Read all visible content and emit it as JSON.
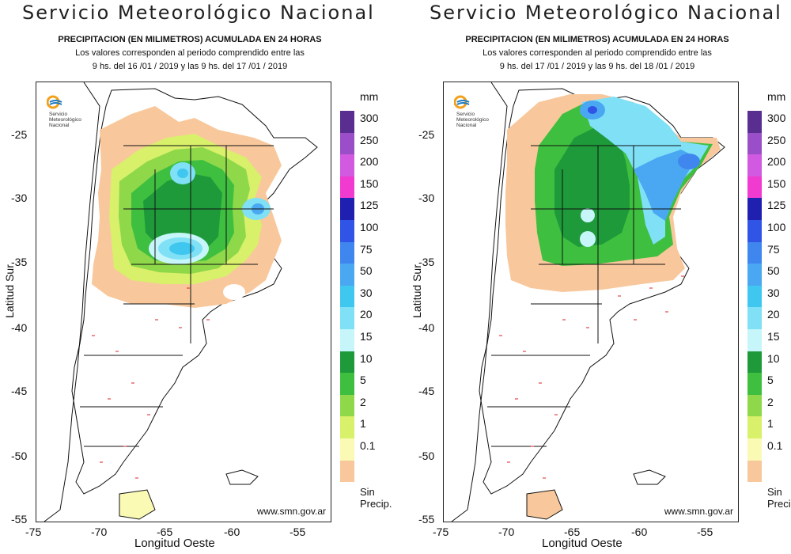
{
  "panels": [
    {
      "title": "Servicio  Meteorológico  Nacional",
      "subtitle1": "PRECIPITACION (EN MILIMETROS) ACUMULADA EN 24 HORAS",
      "subtitle2": "Los valores corresponden al periodo comprendido entre las",
      "subtitle3": "9 hs. del 16 /01 / 2019  y las 9 hs. del 17 /01 / 2019",
      "url": "www.smn.gov.ar"
    },
    {
      "title": "Servicio  Meteorológico  Nacional",
      "subtitle1": "PRECIPITACION (EN MILIMETROS) ACUMULADA EN 24 HORAS",
      "subtitle2": "Los valores corresponden al periodo comprendido entre las",
      "subtitle3": "9 hs. del 17 /01 / 2019  y las 9 hs. del 18 /01 / 2019",
      "url": "www.smn.gov.ar"
    }
  ],
  "axes": {
    "xlabel": "Longitud Oeste",
    "ylabel": "Latitud Sur",
    "xticks": [
      "-75",
      "-70",
      "-65",
      "-60",
      "-55"
    ],
    "yticks": [
      "-25",
      "-30",
      "-35",
      "-40",
      "-45",
      "-50",
      "-55"
    ]
  },
  "logo": {
    "line1": "Servicio",
    "line2": "Meteorológico",
    "line3": "Nacional"
  },
  "legend": {
    "unit": "mm",
    "levels": [
      {
        "label": "300",
        "color": "#5a2d91"
      },
      {
        "label": "250",
        "color": "#9a4fc8"
      },
      {
        "label": "200",
        "color": "#d15ae0"
      },
      {
        "label": "150",
        "color": "#f03ad0"
      },
      {
        "label": "125",
        "color": "#1f1fb0"
      },
      {
        "label": "100",
        "color": "#2f54e6"
      },
      {
        "label": "75",
        "color": "#3f86ee"
      },
      {
        "label": "50",
        "color": "#4aa8f2"
      },
      {
        "label": "30",
        "color": "#3fc7f0"
      },
      {
        "label": "20",
        "color": "#7fe0f6"
      },
      {
        "label": "15",
        "color": "#c6f6fa"
      },
      {
        "label": "10",
        "color": "#1f9a3a"
      },
      {
        "label": "5",
        "color": "#3fbf3f"
      },
      {
        "label": "2",
        "color": "#8ed84a"
      },
      {
        "label": "1",
        "color": "#d8f06a"
      },
      {
        "label": "0.1",
        "color": "#fafab4"
      }
    ],
    "no_precip_label_1": "Sin",
    "no_precip_label_2": "Precip.",
    "no_precip_color": "#f8c89c"
  }
}
